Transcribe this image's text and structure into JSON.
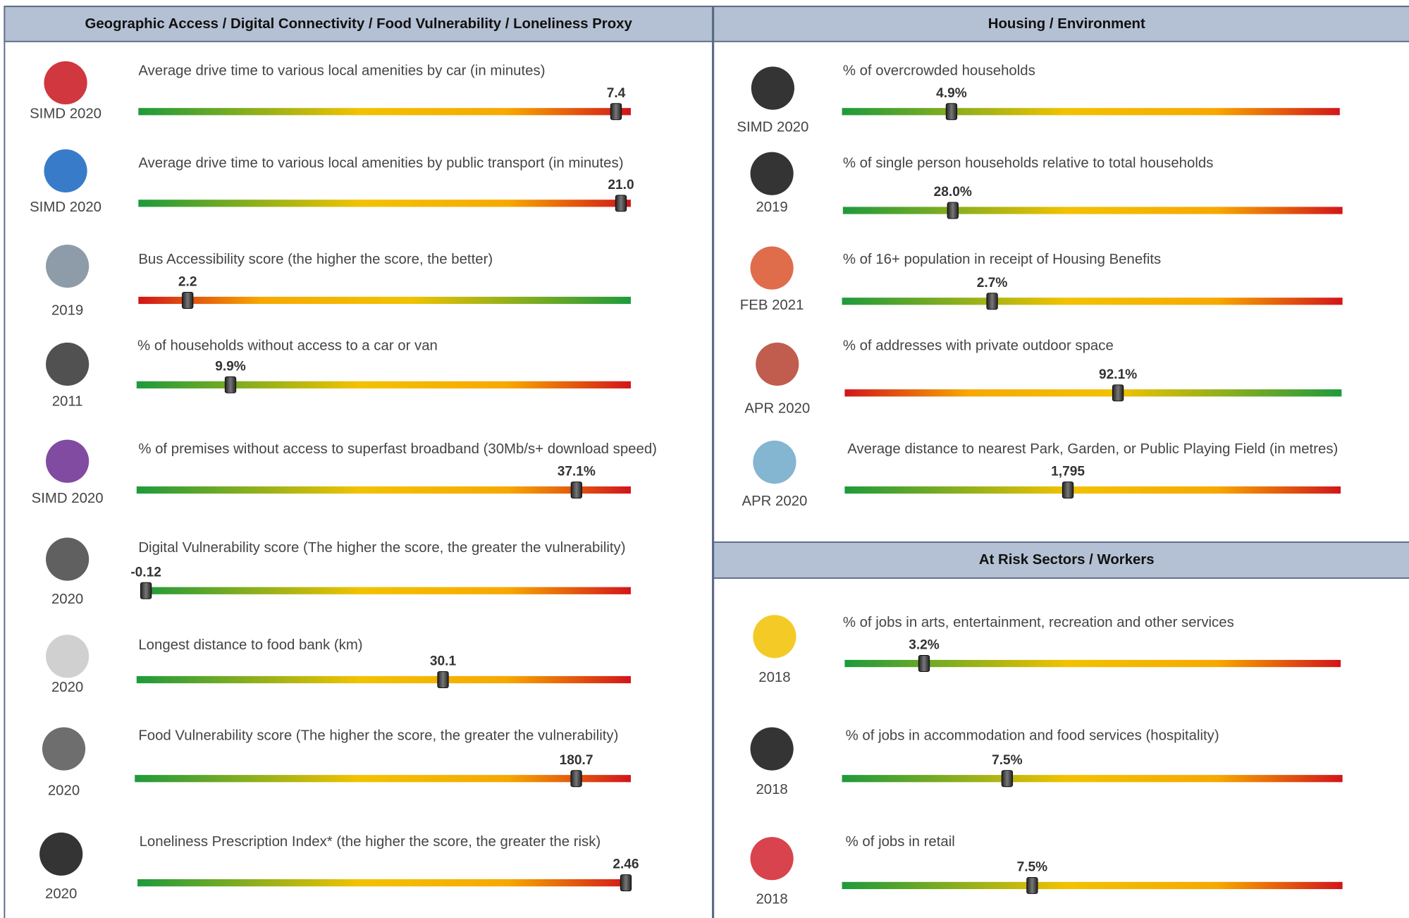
{
  "panels": [
    {
      "title": "Geographic Access / Digital Connectivity / Food Vulnerability / Loneliness Proxy",
      "items": [
        {
          "label": "Average drive time to various local amenities by car (in minutes)",
          "year": "SIMD 2020",
          "value": "7.4",
          "rank": 97,
          "scale": "green-red"
        },
        {
          "label": "Average drive time to various local amenities by public transport (in minutes)",
          "year": "SIMD 2020",
          "value": "21.0",
          "rank": 98,
          "scale": "green-red"
        },
        {
          "label": "Bus Accessibility score (the higher the score, the better)",
          "year": "2019",
          "value": "2.2",
          "rank": 10,
          "scale": "red-green"
        },
        {
          "label": "% of households without access to a car or van",
          "year": "2011",
          "value": "9.9%",
          "rank": 19,
          "scale": "green-red"
        },
        {
          "label": "% of premises without access to superfast broadband (30Mb/s+ download speed)",
          "year": "SIMD 2020",
          "value": "37.1%",
          "rank": 89,
          "scale": "green-red"
        },
        {
          "label": "Digital Vulnerability score (The higher the score, the greater the vulnerability)",
          "year": "2020",
          "value": "-0.12",
          "rank": 1,
          "scale": "green-red"
        },
        {
          "label": "Longest distance to food bank (km)",
          "year": "2020",
          "value": "30.1",
          "rank": 62,
          "scale": "green-red"
        },
        {
          "label": "Food Vulnerability score (The higher the score, the greater the vulnerability)",
          "year": "2020",
          "value": "180.7",
          "rank": 89,
          "scale": "green-red"
        },
        {
          "label": "Loneliness Prescription Index* (the higher the score, the greater the risk)",
          "year": "2020",
          "value": "2.46",
          "rank": 99,
          "scale": "green-red"
        }
      ]
    },
    {
      "title": "Housing / Environment",
      "items": [
        {
          "label": "% of overcrowded households",
          "year": "SIMD 2020",
          "value": "4.9%",
          "rank": 22,
          "scale": "green-red"
        },
        {
          "label": "% of single person households relative to total households",
          "year": "2019",
          "value": "28.0%",
          "rank": 22,
          "scale": "green-red"
        },
        {
          "label": "% of 16+ population in receipt of Housing Benefits",
          "year": "FEB 2021",
          "value": "2.7%",
          "rank": 30,
          "scale": "green-red"
        },
        {
          "label": "% of addresses with private outdoor space",
          "year": "APR 2020",
          "value": "92.1%",
          "rank": 55,
          "scale": "red-green"
        },
        {
          "label": "Average distance to nearest Park, Garden, or Public Playing Field (in metres)",
          "year": "APR 2020",
          "value": "1,795",
          "rank": 45,
          "scale": "green-red"
        }
      ]
    },
    {
      "title": "At Risk Sectors / Workers",
      "items": [
        {
          "label": "% of jobs in arts, entertainment, recreation and other services",
          "year": "2018",
          "value": "3.2%",
          "rank": 16,
          "scale": "green-red"
        },
        {
          "label": "% of jobs in accommodation and food services (hospitality)",
          "year": "2018",
          "value": "7.5%",
          "rank": 33,
          "scale": "green-red"
        },
        {
          "label": "% of jobs in retail",
          "year": "2018",
          "value": "7.5%",
          "rank": 38,
          "scale": "green-red"
        }
      ]
    }
  ]
}
